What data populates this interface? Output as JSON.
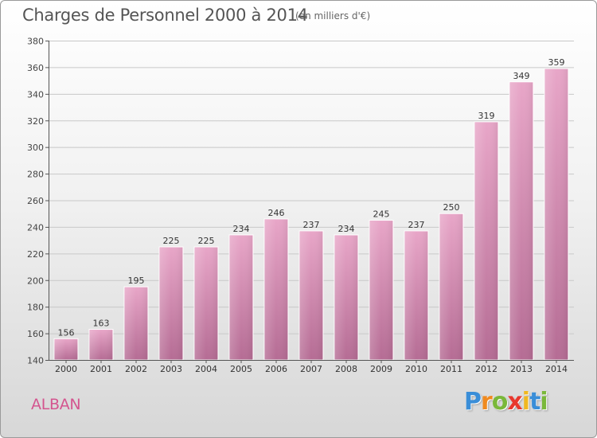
{
  "header": {
    "title": "Charges de Personnel 2000 à 2014",
    "subtitle": "(en milliers d'€)"
  },
  "footer": {
    "commune": "ALBAN",
    "logo_letters": [
      "P",
      "r",
      "o",
      "x",
      "i",
      "t",
      "i"
    ],
    "logo_colors": [
      "#3a8ed8",
      "#f08a1f",
      "#7ab83a",
      "#e8382e",
      "#f0b81f",
      "#3a8ed8",
      "#7ab83a"
    ]
  },
  "chart_data": {
    "type": "bar",
    "categories": [
      "2000",
      "2001",
      "2002",
      "2003",
      "2004",
      "2005",
      "2006",
      "2007",
      "2008",
      "2009",
      "2010",
      "2011",
      "2012",
      "2013",
      "2014"
    ],
    "values": [
      156,
      163,
      195,
      225,
      225,
      234,
      246,
      237,
      234,
      245,
      237,
      250,
      319,
      349,
      359
    ],
    "ylim": [
      140,
      380
    ],
    "yticks": [
      140,
      160,
      180,
      200,
      220,
      240,
      260,
      280,
      300,
      320,
      340,
      360,
      380
    ],
    "grid": true,
    "bar_color_top": "#e8a6c8",
    "bar_color_bottom": "#b56c94"
  }
}
